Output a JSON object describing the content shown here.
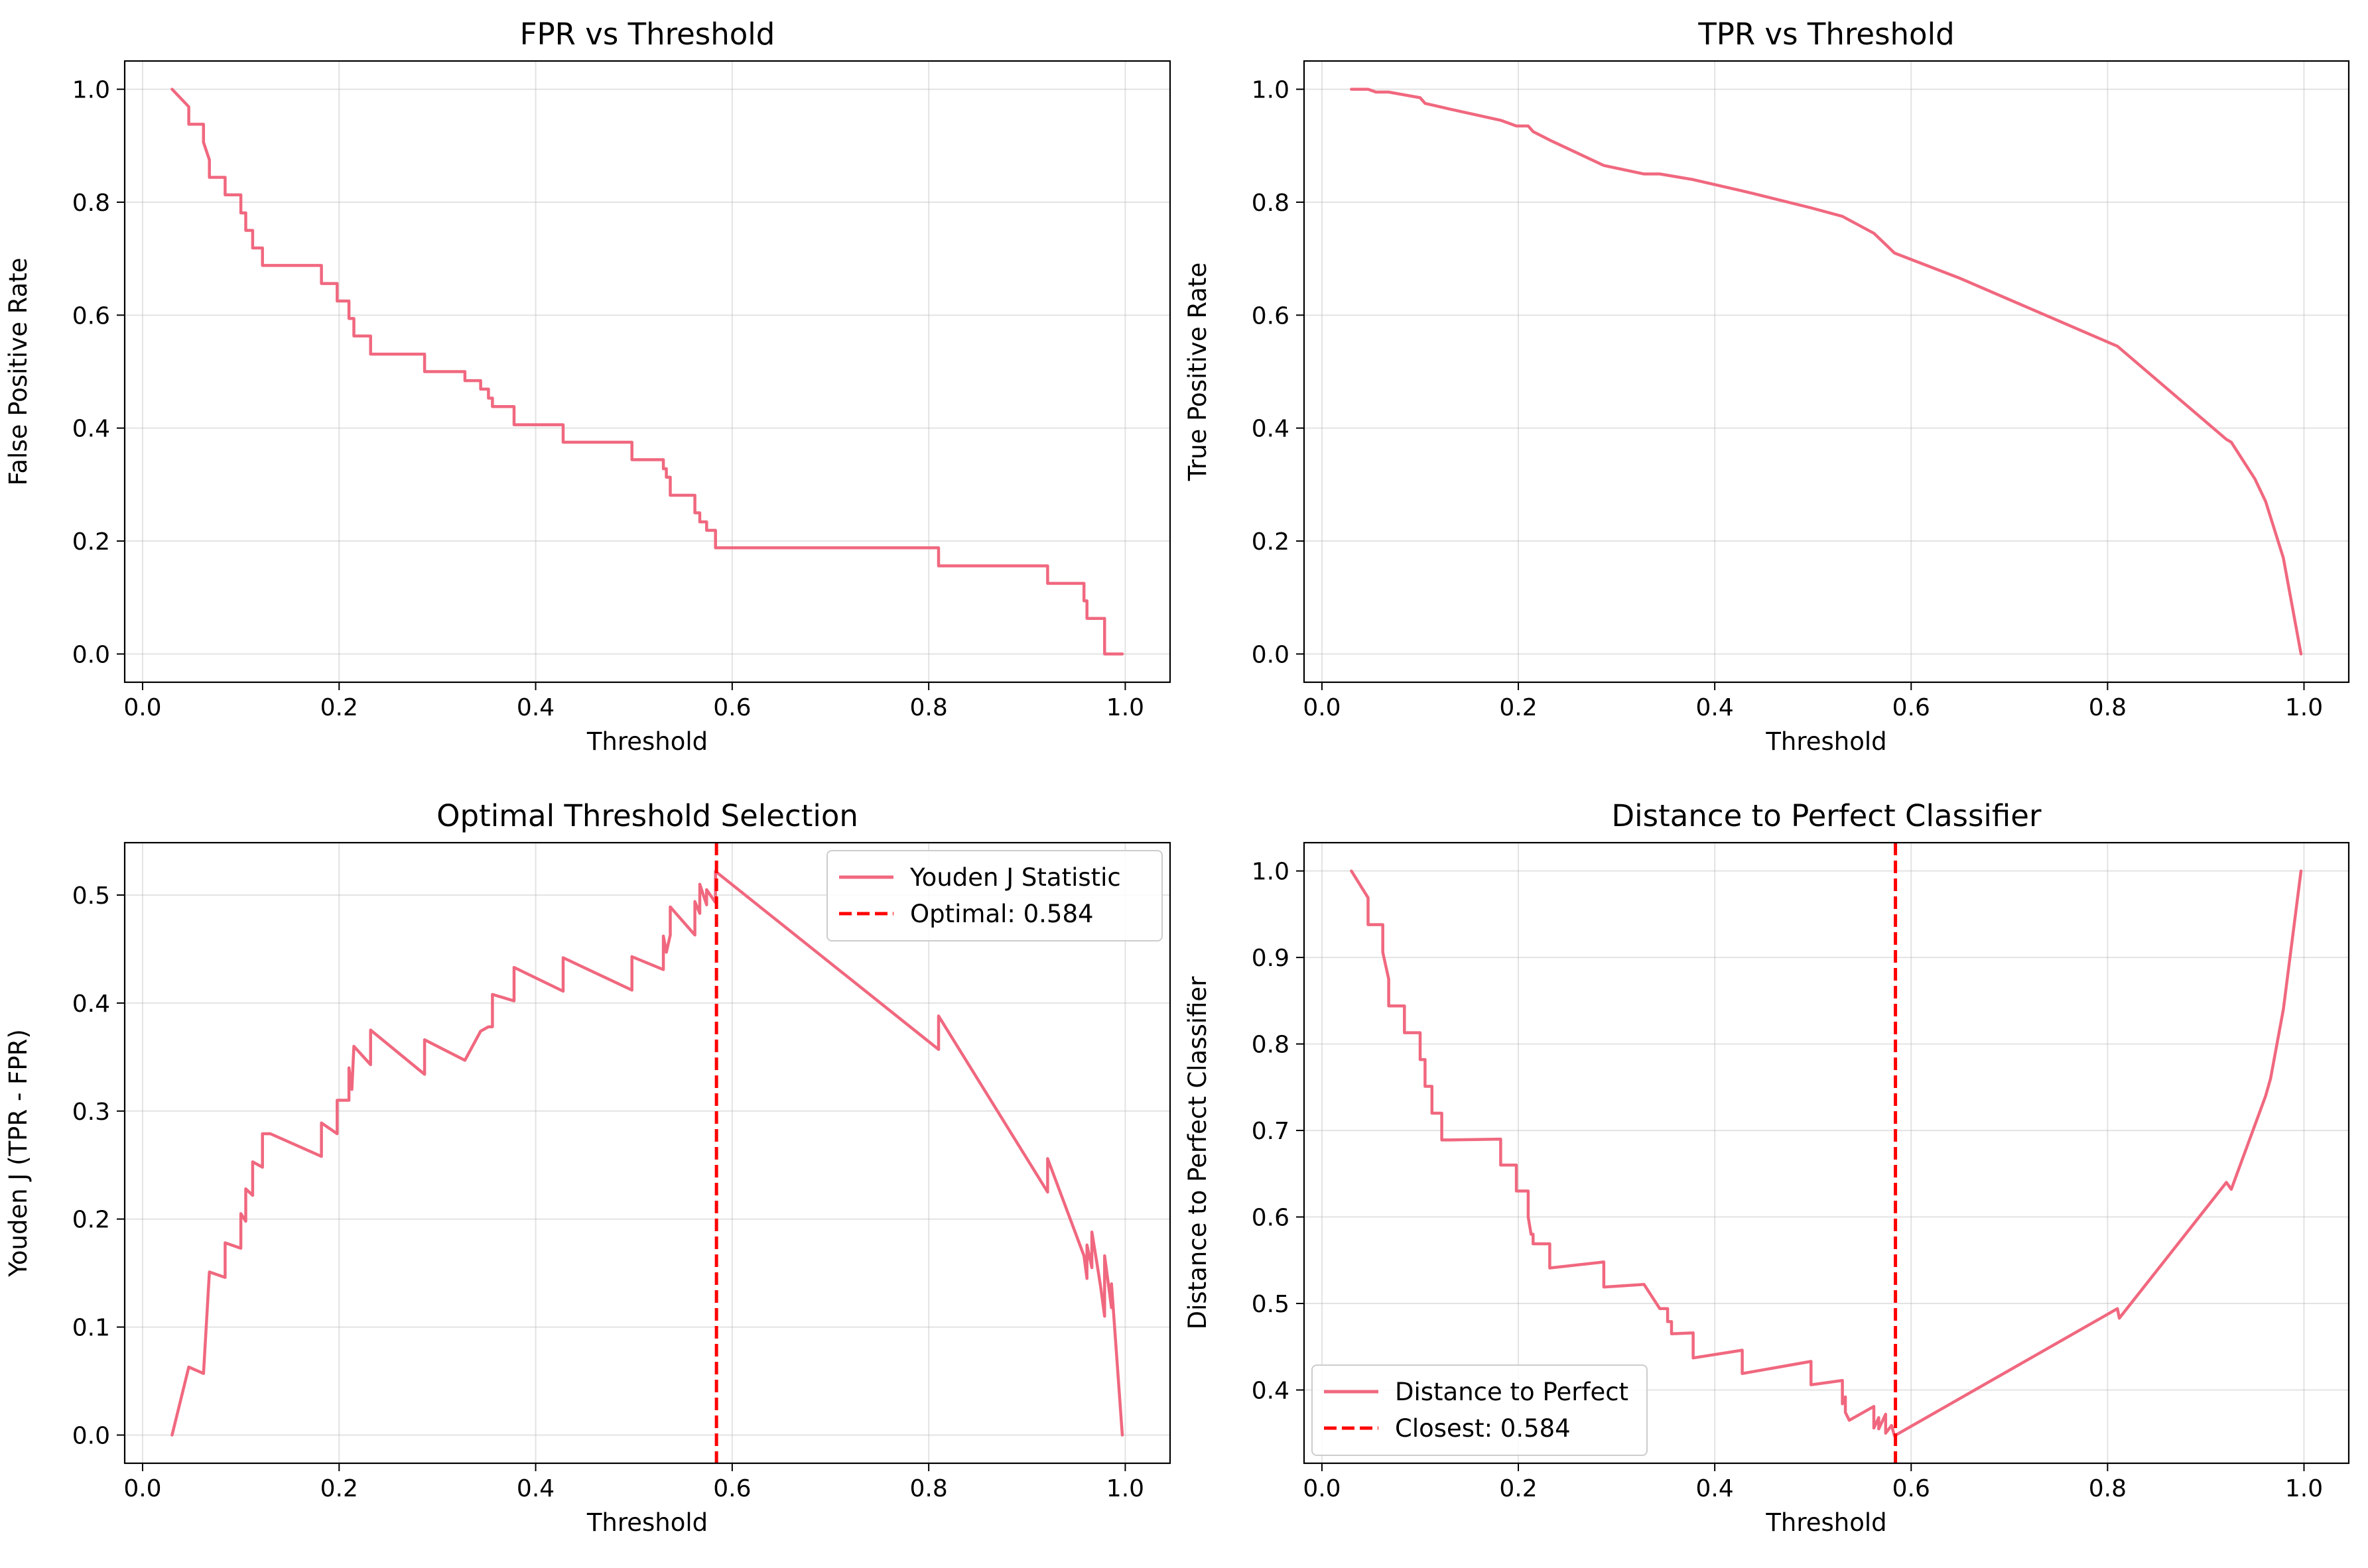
{
  "chart_data": [
    {
      "type": "line",
      "title": "FPR vs Threshold",
      "xlabel": "Threshold",
      "ylabel": "False Positive Rate",
      "xlim": [
        -0.0182,
        1.0456
      ],
      "ylim": [
        -0.05,
        1.05
      ],
      "xticks": [
        0.0,
        0.2,
        0.4,
        0.6,
        0.8,
        1.0
      ],
      "xtick_labels": [
        "0.0",
        "0.2",
        "0.4",
        "0.6",
        "0.8",
        "1.0"
      ],
      "yticks": [
        0.0,
        0.2,
        0.4,
        0.6,
        0.8,
        1.0
      ],
      "ytick_labels": [
        "0.0",
        "0.2",
        "0.4",
        "0.6",
        "0.8",
        "1.0"
      ],
      "grid": true,
      "legend": null,
      "colors": {
        "line": "#f0687f",
        "marker": "#ff0000"
      },
      "series": [
        {
          "name": "",
          "style": "solid",
          "x": [
            0.03,
            0.047,
            0.047,
            0.062,
            0.062,
            0.068,
            0.068,
            0.084,
            0.084,
            0.1,
            0.1,
            0.105,
            0.105,
            0.112,
            0.112,
            0.122,
            0.122,
            0.13,
            0.13,
            0.182,
            0.182,
            0.198,
            0.198,
            0.21,
            0.21,
            0.215,
            0.215,
            0.232,
            0.232,
            0.287,
            0.287,
            0.328,
            0.328,
            0.344,
            0.344,
            0.352,
            0.352,
            0.356,
            0.356,
            0.378,
            0.378,
            0.428,
            0.428,
            0.498,
            0.498,
            0.53,
            0.53,
            0.533,
            0.533,
            0.537,
            0.537,
            0.562,
            0.562,
            0.567,
            0.567,
            0.574,
            0.574,
            0.583,
            0.583,
            0.81,
            0.81,
            0.921,
            0.921,
            0.958,
            0.958,
            0.961,
            0.961,
            0.966,
            0.966,
            0.979,
            0.979,
            0.997
          ],
          "y": [
            1.0,
            0.969,
            0.938,
            0.938,
            0.906,
            0.875,
            0.844,
            0.844,
            0.813,
            0.813,
            0.781,
            0.781,
            0.75,
            0.75,
            0.719,
            0.719,
            0.688,
            0.688,
            0.688,
            0.688,
            0.656,
            0.656,
            0.625,
            0.625,
            0.594,
            0.594,
            0.563,
            0.563,
            0.531,
            0.531,
            0.5,
            0.5,
            0.484,
            0.484,
            0.469,
            0.469,
            0.453,
            0.453,
            0.438,
            0.438,
            0.406,
            0.406,
            0.375,
            0.375,
            0.344,
            0.344,
            0.328,
            0.328,
            0.313,
            0.313,
            0.281,
            0.281,
            0.25,
            0.25,
            0.234,
            0.234,
            0.219,
            0.219,
            0.188,
            0.188,
            0.156,
            0.156,
            0.125,
            0.125,
            0.094,
            0.094,
            0.063,
            0.063,
            0.063,
            0.063,
            0.0,
            0.0
          ]
        }
      ]
    },
    {
      "type": "line",
      "title": "TPR vs Threshold",
      "xlabel": "Threshold",
      "ylabel": "True Positive Rate",
      "xlim": [
        -0.0182,
        1.0456
      ],
      "ylim": [
        -0.05,
        1.05
      ],
      "xticks": [
        0.0,
        0.2,
        0.4,
        0.6,
        0.8,
        1.0
      ],
      "xtick_labels": [
        "0.0",
        "0.2",
        "0.4",
        "0.6",
        "0.8",
        "1.0"
      ],
      "yticks": [
        0.0,
        0.2,
        0.4,
        0.6,
        0.8,
        1.0
      ],
      "ytick_labels": [
        "0.0",
        "0.2",
        "0.4",
        "0.6",
        "0.8",
        "1.0"
      ],
      "grid": true,
      "legend": null,
      "colors": {
        "line": "#f0687f",
        "marker": "#ff0000"
      },
      "series": [
        {
          "name": "",
          "style": "solid",
          "x": [
            0.03,
            0.047,
            0.055,
            0.068,
            0.084,
            0.1,
            0.105,
            0.13,
            0.182,
            0.198,
            0.21,
            0.215,
            0.232,
            0.287,
            0.328,
            0.344,
            0.378,
            0.428,
            0.44,
            0.498,
            0.53,
            0.562,
            0.574,
            0.583,
            0.65,
            0.81,
            0.921,
            0.926,
            0.95,
            0.961,
            0.979,
            0.997
          ],
          "y": [
            1.0,
            1.0,
            0.995,
            0.995,
            0.99,
            0.985,
            0.975,
            0.965,
            0.945,
            0.935,
            0.935,
            0.925,
            0.91,
            0.865,
            0.85,
            0.85,
            0.84,
            0.82,
            0.815,
            0.79,
            0.775,
            0.745,
            0.725,
            0.71,
            0.665,
            0.545,
            0.38,
            0.375,
            0.31,
            0.27,
            0.17,
            0.0
          ]
        }
      ]
    },
    {
      "type": "line",
      "title": "Optimal Threshold Selection",
      "xlabel": "Threshold",
      "ylabel": "Youden J (TPR - FPR)",
      "xlim": [
        -0.0182,
        1.0456
      ],
      "ylim": [
        -0.0261,
        0.5485
      ],
      "xticks": [
        0.0,
        0.2,
        0.4,
        0.6,
        0.8,
        1.0
      ],
      "xtick_labels": [
        "0.0",
        "0.2",
        "0.4",
        "0.6",
        "0.8",
        "1.0"
      ],
      "yticks": [
        0.0,
        0.1,
        0.2,
        0.3,
        0.4,
        0.5
      ],
      "ytick_labels": [
        "0.0",
        "0.1",
        "0.2",
        "0.3",
        "0.4",
        "0.5"
      ],
      "grid": true,
      "legend": "top-right",
      "colors": {
        "line": "#f0687f",
        "marker": "#ff0000"
      },
      "series": [
        {
          "name": "Youden J Statistic",
          "style": "solid",
          "x": [
            0.03,
            0.047,
            0.062,
            0.068,
            0.084,
            0.084,
            0.1,
            0.1,
            0.105,
            0.105,
            0.112,
            0.112,
            0.122,
            0.122,
            0.13,
            0.13,
            0.182,
            0.182,
            0.198,
            0.198,
            0.21,
            0.21,
            0.213,
            0.215,
            0.215,
            0.232,
            0.232,
            0.287,
            0.287,
            0.328,
            0.344,
            0.352,
            0.356,
            0.356,
            0.378,
            0.378,
            0.428,
            0.428,
            0.498,
            0.498,
            0.53,
            0.53,
            0.533,
            0.537,
            0.537,
            0.562,
            0.562,
            0.567,
            0.567,
            0.574,
            0.574,
            0.583,
            0.583,
            0.81,
            0.81,
            0.921,
            0.921,
            0.958,
            0.961,
            0.961,
            0.966,
            0.966,
            0.971,
            0.975,
            0.979,
            0.979,
            0.986,
            0.986,
            0.997
          ],
          "y": [
            0.0,
            0.063,
            0.057,
            0.151,
            0.146,
            0.178,
            0.173,
            0.205,
            0.198,
            0.228,
            0.222,
            0.253,
            0.248,
            0.279,
            0.279,
            0.279,
            0.258,
            0.289,
            0.279,
            0.31,
            0.31,
            0.34,
            0.32,
            0.36,
            0.36,
            0.343,
            0.375,
            0.334,
            0.366,
            0.347,
            0.374,
            0.378,
            0.378,
            0.408,
            0.402,
            0.433,
            0.411,
            0.442,
            0.412,
            0.443,
            0.431,
            0.462,
            0.447,
            0.463,
            0.489,
            0.463,
            0.494,
            0.483,
            0.51,
            0.491,
            0.505,
            0.493,
            0.522,
            0.357,
            0.388,
            0.225,
            0.256,
            0.166,
            0.145,
            0.176,
            0.155,
            0.188,
            0.16,
            0.137,
            0.11,
            0.166,
            0.118,
            0.14,
            0.0
          ]
        },
        {
          "name": "Optimal: 0.584",
          "style": "dashed",
          "vline": 0.584
        }
      ]
    },
    {
      "type": "line",
      "title": "Distance to Perfect Classifier",
      "xlabel": "Threshold",
      "ylabel": "Distance to Perfect Classifier",
      "xlim": [
        -0.0182,
        1.0456
      ],
      "ylim": [
        0.3153,
        1.0327
      ],
      "xticks": [
        0.0,
        0.2,
        0.4,
        0.6,
        0.8,
        1.0
      ],
      "xtick_labels": [
        "0.0",
        "0.2",
        "0.4",
        "0.6",
        "0.8",
        "1.0"
      ],
      "yticks": [
        0.4,
        0.5,
        0.6,
        0.7,
        0.8,
        0.9,
        1.0
      ],
      "ytick_labels": [
        "0.4",
        "0.5",
        "0.6",
        "0.7",
        "0.8",
        "0.9",
        "1.0"
      ],
      "grid": true,
      "legend": "bottom-left",
      "colors": {
        "line": "#f0687f",
        "marker": "#ff0000"
      },
      "series": [
        {
          "name": "Distance to Perfect",
          "style": "solid",
          "x": [
            0.03,
            0.047,
            0.047,
            0.062,
            0.062,
            0.068,
            0.068,
            0.084,
            0.084,
            0.1,
            0.1,
            0.105,
            0.105,
            0.112,
            0.112,
            0.122,
            0.122,
            0.13,
            0.13,
            0.182,
            0.182,
            0.198,
            0.198,
            0.21,
            0.21,
            0.213,
            0.215,
            0.215,
            0.232,
            0.232,
            0.287,
            0.287,
            0.328,
            0.344,
            0.352,
            0.352,
            0.356,
            0.356,
            0.378,
            0.378,
            0.428,
            0.428,
            0.498,
            0.498,
            0.53,
            0.53,
            0.533,
            0.533,
            0.537,
            0.537,
            0.562,
            0.562,
            0.567,
            0.567,
            0.574,
            0.574,
            0.58,
            0.583,
            0.81,
            0.812,
            0.921,
            0.926,
            0.961,
            0.966,
            0.979,
            0.997
          ],
          "y": [
            1.0,
            0.969,
            0.938,
            0.938,
            0.906,
            0.875,
            0.844,
            0.844,
            0.813,
            0.813,
            0.782,
            0.782,
            0.751,
            0.751,
            0.72,
            0.72,
            0.689,
            0.689,
            0.689,
            0.69,
            0.66,
            0.66,
            0.63,
            0.63,
            0.6,
            0.58,
            0.58,
            0.569,
            0.569,
            0.541,
            0.548,
            0.519,
            0.522,
            0.494,
            0.494,
            0.479,
            0.479,
            0.465,
            0.466,
            0.437,
            0.446,
            0.419,
            0.433,
            0.406,
            0.411,
            0.384,
            0.392,
            0.374,
            0.365,
            0.365,
            0.381,
            0.356,
            0.368,
            0.355,
            0.372,
            0.35,
            0.359,
            0.347,
            0.494,
            0.483,
            0.64,
            0.632,
            0.74,
            0.76,
            0.84,
            1.0
          ]
        },
        {
          "name": "Closest: 0.584",
          "style": "dashed",
          "vline": 0.584
        }
      ]
    }
  ]
}
